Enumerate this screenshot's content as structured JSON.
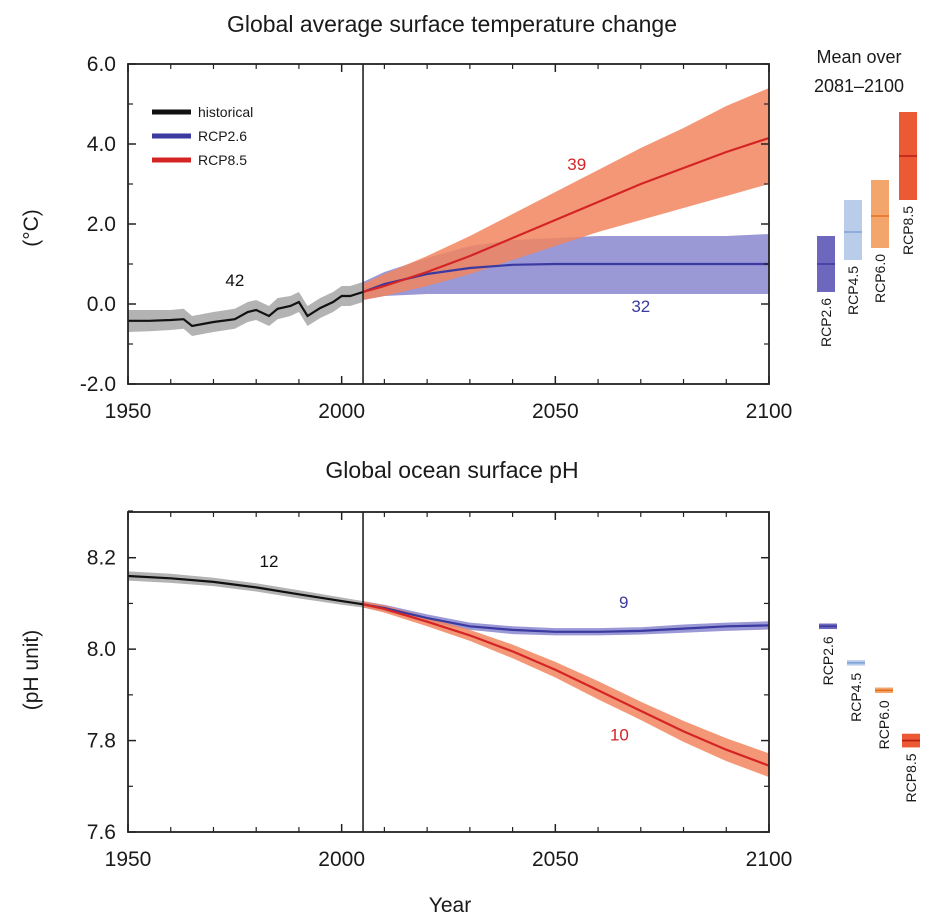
{
  "chart_data": [
    {
      "type": "line",
      "title": "Global average surface temperature change",
      "ylabel": "(°C)",
      "xlabel": "",
      "xlim": [
        1950,
        2100
      ],
      "ylim": [
        -2.0,
        6.0
      ],
      "x_ticks": [
        "1950",
        "2000",
        "2050",
        "2100"
      ],
      "y_ticks": [
        "-2.0",
        "0.0",
        "2.0",
        "4.0",
        "6.0"
      ],
      "grid": false,
      "legend_position": "top-left",
      "legend": [
        "historical",
        "RCP2.6",
        "RCP8.5"
      ],
      "colors": {
        "historical": "#111111",
        "RCP2.6": "#3b3aa0",
        "RCP8.5": "#d42424",
        "RCP2.6_band": "#8a86cf",
        "RCP8.5_band": "#f2855f",
        "historical_band": "#9a9a9a"
      },
      "divider_year": 2005,
      "series": [
        {
          "name": "historical",
          "x": [
            1950,
            1955,
            1960,
            1963,
            1965,
            1970,
            1975,
            1978,
            1980,
            1983,
            1985,
            1988,
            1990,
            1992,
            1995,
            1998,
            2000,
            2002,
            2005
          ],
          "y": [
            -0.42,
            -0.42,
            -0.4,
            -0.38,
            -0.55,
            -0.45,
            -0.38,
            -0.2,
            -0.15,
            -0.3,
            -0.12,
            -0.05,
            0.05,
            -0.3,
            -0.1,
            0.05,
            0.2,
            0.2,
            0.3
          ],
          "lower": [
            -0.7,
            -0.68,
            -0.65,
            -0.62,
            -0.8,
            -0.7,
            -0.62,
            -0.45,
            -0.4,
            -0.55,
            -0.38,
            -0.3,
            -0.2,
            -0.55,
            -0.35,
            -0.2,
            -0.05,
            -0.05,
            0.05
          ],
          "upper": [
            -0.15,
            -0.15,
            -0.15,
            -0.12,
            -0.3,
            -0.2,
            -0.12,
            0.05,
            0.1,
            -0.05,
            0.15,
            0.2,
            0.3,
            -0.05,
            0.15,
            0.3,
            0.45,
            0.45,
            0.55
          ]
        },
        {
          "name": "RCP2.6",
          "x": [
            2005,
            2010,
            2020,
            2030,
            2040,
            2050,
            2060,
            2070,
            2080,
            2090,
            2100
          ],
          "y": [
            0.3,
            0.5,
            0.75,
            0.9,
            0.98,
            1.0,
            1.0,
            1.0,
            1.0,
            1.0,
            1.0
          ],
          "lower": [
            0.1,
            0.2,
            0.25,
            0.25,
            0.25,
            0.25,
            0.25,
            0.25,
            0.25,
            0.25,
            0.25
          ],
          "upper": [
            0.55,
            0.8,
            1.15,
            1.45,
            1.6,
            1.65,
            1.7,
            1.7,
            1.7,
            1.7,
            1.75
          ]
        },
        {
          "name": "RCP8.5",
          "x": [
            2005,
            2010,
            2020,
            2030,
            2040,
            2050,
            2060,
            2070,
            2080,
            2090,
            2100
          ],
          "y": [
            0.3,
            0.45,
            0.8,
            1.2,
            1.65,
            2.1,
            2.55,
            3.0,
            3.4,
            3.8,
            4.15
          ],
          "lower": [
            0.1,
            0.2,
            0.45,
            0.75,
            1.1,
            1.45,
            1.8,
            2.1,
            2.4,
            2.7,
            3.0
          ],
          "upper": [
            0.5,
            0.75,
            1.2,
            1.7,
            2.25,
            2.8,
            3.35,
            3.9,
            4.4,
            4.95,
            5.4
          ]
        }
      ],
      "annotations": [
        {
          "text": "42",
          "x": 1975,
          "y": 0.45,
          "color": "#111111"
        },
        {
          "text": "39",
          "x": 2055,
          "y": 3.35,
          "color": "#d42424"
        },
        {
          "text": "32",
          "x": 2070,
          "y": -0.2,
          "color": "#3b3aa0"
        }
      ],
      "side_panel": {
        "title_lines": [
          "Mean over",
          "2081–2100"
        ],
        "boxes": [
          {
            "name": "RCP2.6",
            "mean": 1.0,
            "low": 0.3,
            "high": 1.7,
            "color": "#6d67bd",
            "edge": "#3b3aa0"
          },
          {
            "name": "RCP4.5",
            "mean": 1.8,
            "low": 1.1,
            "high": 2.6,
            "color": "#b9cdea",
            "edge": "#7fa4d8"
          },
          {
            "name": "RCP6.0",
            "mean": 2.2,
            "low": 1.4,
            "high": 3.1,
            "color": "#f4a56c",
            "edge": "#e0701e"
          },
          {
            "name": "RCP8.5",
            "mean": 3.7,
            "low": 2.6,
            "high": 4.8,
            "color": "#ec5a35",
            "edge": "#b81d10"
          }
        ]
      }
    },
    {
      "type": "line",
      "title": "Global ocean surface pH",
      "ylabel": "(pH unit)",
      "xlabel": "Year",
      "xlim": [
        1950,
        2100
      ],
      "ylim": [
        7.6,
        8.3
      ],
      "x_ticks": [
        "1950",
        "2000",
        "2050",
        "2100"
      ],
      "y_ticks": [
        "7.6",
        "7.8",
        "8.0",
        "8.2"
      ],
      "grid": false,
      "colors": {
        "historical": "#111111",
        "RCP2.6": "#3b3aa0",
        "RCP8.5": "#d42424",
        "RCP2.6_band": "#8a86cf",
        "RCP8.5_band": "#f2855f",
        "historical_band": "#9a9a9a"
      },
      "divider_year": 2005,
      "series": [
        {
          "name": "historical",
          "x": [
            1950,
            1960,
            1970,
            1980,
            1990,
            2000,
            2005
          ],
          "y": [
            8.16,
            8.155,
            8.147,
            8.135,
            8.12,
            8.105,
            8.098
          ],
          "lower": [
            8.15,
            8.145,
            8.138,
            8.126,
            8.111,
            8.097,
            8.091
          ],
          "upper": [
            8.17,
            8.165,
            8.156,
            8.144,
            8.129,
            8.113,
            8.105
          ]
        },
        {
          "name": "RCP2.6",
          "x": [
            2005,
            2010,
            2020,
            2030,
            2040,
            2050,
            2060,
            2070,
            2080,
            2090,
            2100
          ],
          "y": [
            8.098,
            8.09,
            8.068,
            8.05,
            8.042,
            8.038,
            8.038,
            8.04,
            8.045,
            8.05,
            8.052
          ],
          "lower": [
            8.091,
            8.083,
            8.06,
            8.042,
            8.033,
            8.03,
            8.03,
            8.032,
            8.036,
            8.04,
            8.043
          ],
          "upper": [
            8.105,
            8.097,
            8.076,
            8.058,
            8.05,
            8.046,
            8.046,
            8.048,
            8.054,
            8.058,
            8.061
          ]
        },
        {
          "name": "RCP8.5",
          "x": [
            2005,
            2010,
            2020,
            2030,
            2040,
            2050,
            2060,
            2070,
            2080,
            2090,
            2100
          ],
          "y": [
            8.098,
            8.088,
            8.06,
            8.03,
            7.995,
            7.955,
            7.91,
            7.865,
            7.82,
            7.78,
            7.745
          ],
          "lower": [
            8.091,
            8.08,
            8.05,
            8.018,
            7.98,
            7.938,
            7.89,
            7.845,
            7.797,
            7.755,
            7.72
          ],
          "upper": [
            8.105,
            8.096,
            8.07,
            8.042,
            8.01,
            7.972,
            7.93,
            7.885,
            7.843,
            7.805,
            7.772
          ]
        }
      ],
      "annotations": [
        {
          "text": "12",
          "x": 1983,
          "y": 8.18,
          "color": "#111111"
        },
        {
          "text": "9",
          "x": 2066,
          "y": 8.09,
          "color": "#3b3aa0"
        },
        {
          "text": "10",
          "x": 2065,
          "y": 7.8,
          "color": "#d42424"
        }
      ],
      "side_panel": {
        "title_lines": [],
        "boxes": [
          {
            "name": "RCP2.6",
            "mean": 8.05,
            "low": 8.044,
            "high": 8.056,
            "color": "#6d67bd",
            "edge": "#3b3aa0"
          },
          {
            "name": "RCP4.5",
            "mean": 7.97,
            "low": 7.964,
            "high": 7.976,
            "color": "#b9cdea",
            "edge": "#7fa4d8"
          },
          {
            "name": "RCP6.0",
            "mean": 7.91,
            "low": 7.904,
            "high": 7.916,
            "color": "#f4a56c",
            "edge": "#e0701e"
          },
          {
            "name": "RCP8.5",
            "mean": 7.8,
            "low": 7.785,
            "high": 7.815,
            "color": "#ec5a35",
            "edge": "#b81d10"
          }
        ]
      }
    }
  ]
}
